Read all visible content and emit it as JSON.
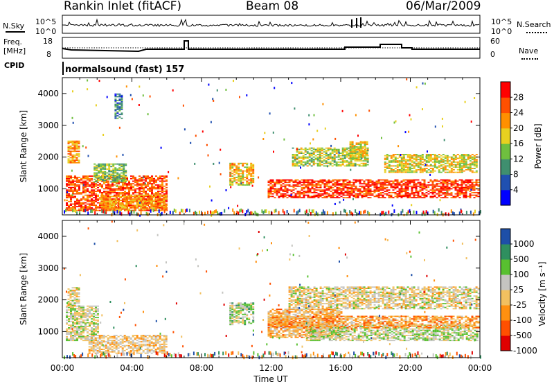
{
  "header": {
    "station": "Rankin Inlet (fitACF)",
    "beam": "Beam 08",
    "date": "06/Mar/2009"
  },
  "nsky_panel": {
    "left_label": "N.Sky",
    "right_label": "N.Search",
    "ticks": [
      "10^5",
      "10^0"
    ]
  },
  "freq_panel": {
    "left_label_line1": "Freq.",
    "left_label_line2": "[MHz]",
    "left_ticks": [
      "18",
      "8"
    ],
    "right_label": "Nave",
    "right_ticks": [
      "60",
      "0"
    ]
  },
  "cpid": {
    "label": "CPID",
    "value": "normalsound (fast) 157"
  },
  "x_axis": {
    "label": "Time UT",
    "ticks": [
      "00:00",
      "04:00",
      "08:00",
      "12:00",
      "16:00",
      "20:00",
      "00:00"
    ]
  },
  "power_panel": {
    "ylabel": "Slant Range [km]",
    "yticks": [
      "1000",
      "2000",
      "3000",
      "4000"
    ],
    "colorbar_label": "Power [dB]",
    "colorbar_ticks": [
      "4",
      "8",
      "12",
      "16",
      "20",
      "24",
      "28"
    ]
  },
  "velocity_panel": {
    "ylabel": "Slant Range [km]",
    "yticks": [
      "1000",
      "2000",
      "3000",
      "4000"
    ],
    "colorbar_label": "Velocity [m s⁻¹]",
    "colorbar_ticks": [
      "1000",
      "500",
      "100",
      "25",
      "-25",
      "-100",
      "-500",
      "-1000"
    ]
  },
  "chart_data": [
    {
      "type": "heatmap",
      "title": "Power [dB]",
      "xlabel": "Time UT",
      "ylabel": "Slant Range [km]",
      "xlim": [
        "00:00",
        "24:00"
      ],
      "ylim": [
        180,
        4500
      ],
      "colorbar": {
        "range": [
          0,
          32
        ],
        "colors": [
          "#0000ff",
          "#2050b0",
          "#3f8f6f",
          "#6fbf3f",
          "#e8d020",
          "#ff9000",
          "#ff5000",
          "#ff0000"
        ]
      },
      "regions": [
        {
          "t": [
            0.2,
            6.0
          ],
          "range": [
            300,
            1400
          ],
          "value": 26
        },
        {
          "t": [
            0.3,
            1.0
          ],
          "range": [
            1800,
            2500
          ],
          "value": 22
        },
        {
          "t": [
            1.8,
            3.6
          ],
          "range": [
            1200,
            1800
          ],
          "value": 14
        },
        {
          "t": [
            2.2,
            6.0
          ],
          "range": [
            300,
            800
          ],
          "value": 22
        },
        {
          "t": [
            9.6,
            11.0
          ],
          "range": [
            1100,
            1800
          ],
          "value": 20
        },
        {
          "t": [
            11.8,
            23.9
          ],
          "range": [
            700,
            1300
          ],
          "value": 28
        },
        {
          "t": [
            13.2,
            17.5
          ],
          "range": [
            1700,
            2300
          ],
          "value": 16
        },
        {
          "t": [
            16.5,
            17.5
          ],
          "range": [
            1900,
            2500
          ],
          "value": 18
        },
        {
          "t": [
            18.5,
            23.8
          ],
          "range": [
            1500,
            2100
          ],
          "value": 18
        },
        {
          "t": [
            3.0,
            3.4
          ],
          "range": [
            3200,
            4000
          ],
          "value": 8
        }
      ]
    },
    {
      "type": "heatmap",
      "title": "Velocity [m s⁻¹]",
      "xlabel": "Time UT",
      "ylabel": "Slant Range [km]",
      "xlim": [
        "00:00",
        "24:00"
      ],
      "ylim": [
        180,
        4500
      ],
      "colorbar": {
        "range": [
          -1000,
          1000
        ],
        "colors": [
          "#e00000",
          "#ff5000",
          "#ff9010",
          "#f2c060",
          "#c4c4c0",
          "#58c030",
          "#2f8f5f",
          "#1e4fa8"
        ]
      },
      "regions": [
        {
          "t": [
            0.2,
            2.0
          ],
          "range": [
            700,
            1800
          ],
          "value": 100
        },
        {
          "t": [
            1.5,
            6.0
          ],
          "range": [
            300,
            900
          ],
          "value": -100
        },
        {
          "t": [
            0.3,
            1.0
          ],
          "range": [
            1800,
            2400
          ],
          "value": 0
        },
        {
          "t": [
            9.6,
            11.0
          ],
          "range": [
            1200,
            1900
          ],
          "value": 200
        },
        {
          "t": [
            11.8,
            16.0
          ],
          "range": [
            800,
            1700
          ],
          "value": -200
        },
        {
          "t": [
            13.0,
            23.9
          ],
          "range": [
            1700,
            2400
          ],
          "value": 0
        },
        {
          "t": [
            14.0,
            23.9
          ],
          "range": [
            700,
            1200
          ],
          "value": 150
        },
        {
          "t": [
            11.8,
            23.9
          ],
          "range": [
            1100,
            1500
          ],
          "value": -300
        }
      ]
    }
  ]
}
